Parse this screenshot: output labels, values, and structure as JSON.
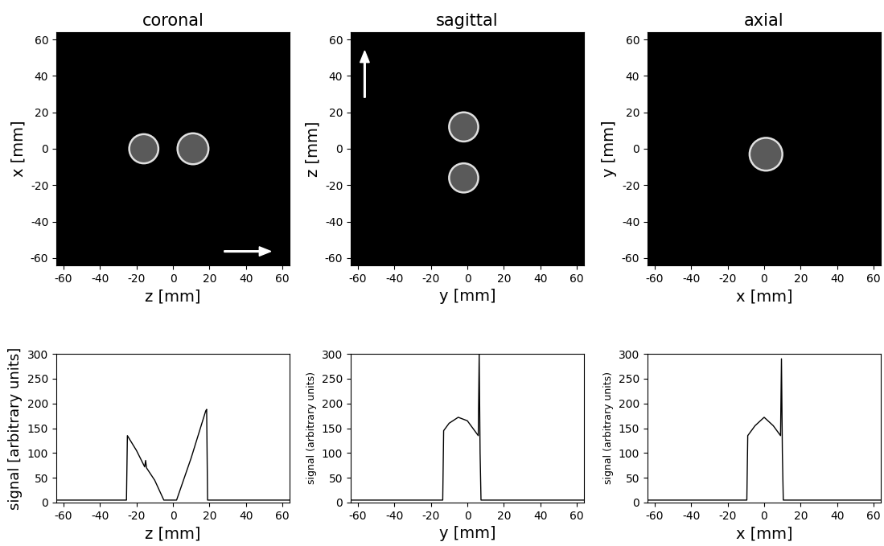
{
  "chart_data": [
    {
      "type": "image",
      "title": "coronal",
      "xlabel": "z [mm]",
      "ylabel": "x [mm]",
      "xlim": [
        -64,
        64
      ],
      "ylim": [
        -64,
        64
      ],
      "xticks": [
        -60,
        -40,
        -20,
        0,
        20,
        40,
        60
      ],
      "yticks": [
        -60,
        -40,
        -20,
        0,
        20,
        40,
        60
      ],
      "circles": [
        {
          "center": [
            -16,
            0
          ],
          "radius": 8
        },
        {
          "center": [
            11,
            0
          ],
          "radius": 8.5
        }
      ]
    },
    {
      "type": "image",
      "title": "sagittal",
      "xlabel": "y [mm]",
      "ylabel": "z [mm]",
      "xlim": [
        -64,
        64
      ],
      "ylim": [
        -64,
        64
      ],
      "xticks": [
        -60,
        -40,
        -20,
        0,
        20,
        40,
        60
      ],
      "yticks": [
        -60,
        -40,
        -20,
        0,
        20,
        40,
        60
      ],
      "circles": [
        {
          "center": [
            -2,
            12
          ],
          "radius": 8
        },
        {
          "center": [
            -2,
            -16
          ],
          "radius": 8
        }
      ]
    },
    {
      "type": "image",
      "title": "axial",
      "xlabel": "x [mm]",
      "ylabel": "y [mm]",
      "xlim": [
        -64,
        64
      ],
      "ylim": [
        -64,
        64
      ],
      "xticks": [
        -60,
        -40,
        -20,
        0,
        20,
        40,
        60
      ],
      "yticks": [
        -60,
        -40,
        -20,
        0,
        20,
        40,
        60
      ],
      "circles": [
        {
          "center": [
            1,
            -3
          ],
          "radius": 9
        }
      ]
    },
    {
      "type": "line",
      "xlabel": "z [mm]",
      "ylabel": "signal [arbitrary units]",
      "color": "#000000",
      "x": [
        -64,
        -25.5,
        -25,
        -20,
        -15.5,
        -15,
        -14.5,
        -10,
        -5,
        2,
        10,
        18,
        18.5,
        19,
        64
      ],
      "values": [
        5,
        5,
        135,
        105,
        72,
        85,
        70,
        45,
        5,
        5,
        90,
        185,
        188,
        5,
        5
      ],
      "xlim": [
        -64,
        64
      ],
      "ylim": [
        0,
        300
      ],
      "xticks": [
        -60,
        -40,
        -20,
        0,
        20,
        40,
        60
      ],
      "yticks": [
        0,
        50,
        100,
        150,
        200,
        250,
        300
      ]
    },
    {
      "type": "line",
      "xlabel": "y [mm]",
      "ylabel": "signal (arbitrary units)",
      "color": "#000000",
      "x": [
        -64,
        -13.5,
        -13,
        -10,
        -5,
        0,
        4,
        6,
        6.5,
        7,
        7.5,
        64
      ],
      "values": [
        5,
        5,
        145,
        160,
        172,
        165,
        145,
        135,
        300,
        100,
        5,
        5
      ],
      "xlim": [
        -64,
        64
      ],
      "ylim": [
        0,
        300
      ],
      "xticks": [
        -60,
        -40,
        -20,
        0,
        20,
        40,
        60
      ],
      "yticks": [
        0,
        50,
        100,
        150,
        200,
        250,
        300
      ]
    },
    {
      "type": "line",
      "xlabel": "x [mm]",
      "ylabel": "signal (arbitrary units)",
      "color": "#000000",
      "x": [
        -64,
        -9.5,
        -9,
        -5,
        0,
        5,
        9,
        9.5,
        10,
        10.5,
        64
      ],
      "values": [
        5,
        5,
        135,
        155,
        172,
        155,
        135,
        290,
        100,
        5,
        5
      ],
      "xlim": [
        -64,
        64
      ],
      "ylim": [
        0,
        300
      ],
      "xticks": [
        -60,
        -40,
        -20,
        0,
        20,
        40,
        60
      ],
      "yticks": [
        0,
        50,
        100,
        150,
        200,
        250,
        300
      ]
    }
  ]
}
